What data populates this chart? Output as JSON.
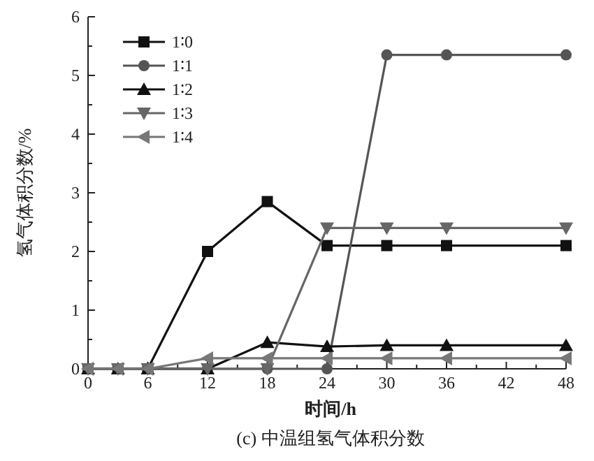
{
  "chart_data": {
    "type": "line",
    "xlabel": "时间/h",
    "ylabel": "氢气体积分数/%",
    "annotations": [
      "(c) 中温组氢气体积分数"
    ],
    "x": [
      0,
      3,
      6,
      12,
      18,
      24,
      30,
      36,
      48
    ],
    "xlim": [
      0,
      48
    ],
    "xticks": [
      0,
      6,
      12,
      18,
      24,
      30,
      36,
      42,
      48
    ],
    "ylim": [
      0,
      6
    ],
    "yticks": [
      0,
      1,
      2,
      3,
      4,
      5,
      6
    ],
    "grid": false,
    "legend": "top left",
    "line_style": "solid",
    "series": [
      {
        "name": "1∶0",
        "color": "#111111",
        "marker": "square",
        "values": [
          0,
          0,
          0,
          2.0,
          2.85,
          2.1,
          2.1,
          2.1,
          2.1
        ]
      },
      {
        "name": "1∶1",
        "color": "#555555",
        "marker": "circle",
        "values": [
          0,
          0,
          0,
          0,
          0,
          0,
          5.35,
          5.35,
          5.35
        ]
      },
      {
        "name": "1∶2",
        "color": "#111111",
        "marker": "triangle",
        "values": [
          0,
          0,
          0,
          0,
          0.45,
          0.38,
          0.4,
          0.4,
          0.4
        ]
      },
      {
        "name": "1∶3",
        "color": "#666666",
        "marker": "triangle-down",
        "values": [
          0,
          0,
          0,
          0,
          0,
          2.4,
          2.4,
          2.4,
          2.4
        ]
      },
      {
        "name": "1∶4",
        "color": "#777777",
        "marker": "triangle-left",
        "values": [
          0,
          0,
          0,
          0.18,
          0.18,
          0.18,
          0.18,
          0.18,
          0.18
        ]
      }
    ]
  }
}
